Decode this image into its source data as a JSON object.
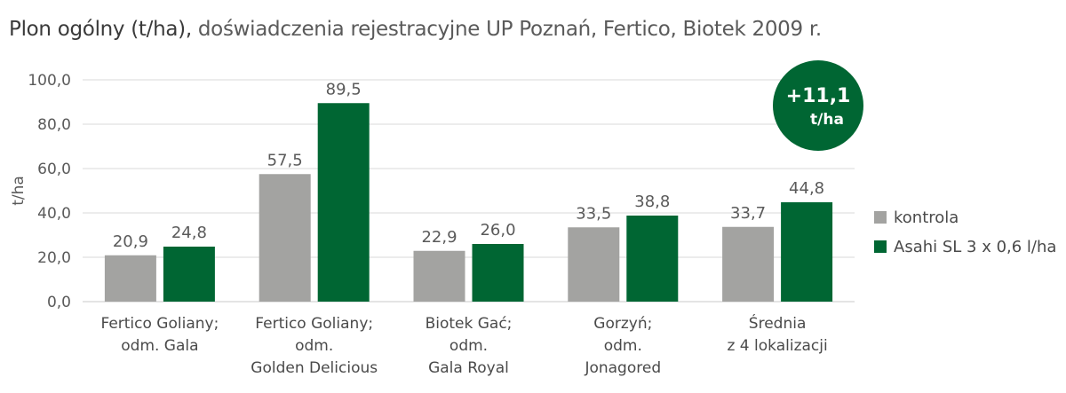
{
  "title": {
    "bold": "Plon ogólny (t/ha),",
    "rest": " doświadczenia rejestracyjne UP Poznań, Fertico, Biotek 2009 r."
  },
  "badge": {
    "value": "+11,1",
    "unit": "t/ha",
    "color": "#006633"
  },
  "chart_data": {
    "type": "bar",
    "title": "Plon ogólny (t/ha), doświadczenia rejestracyjne UP Poznań, Fertico, Biotek 2009 r.",
    "ylabel": "t/ha",
    "xlabel": "",
    "ylim": [
      0,
      100
    ],
    "yticks": [
      0,
      20,
      40,
      60,
      80,
      100
    ],
    "ytick_labels": [
      "0,0",
      "20,0",
      "40,0",
      "60,0",
      "80,0",
      "100,0"
    ],
    "grid": true,
    "legend_position": "right",
    "categories": [
      [
        "Fertico Goliany;",
        "odm. Gala"
      ],
      [
        "Fertico Goliany;",
        "odm.",
        "Golden Delicious"
      ],
      [
        "Biotek Gać;",
        "odm.",
        "Gala Royal"
      ],
      [
        "Gorzyń;",
        "odm.",
        "Jonagored"
      ],
      [
        "Średnia",
        "z 4 lokalizacji"
      ]
    ],
    "series": [
      {
        "name": "kontrola",
        "color": "#a3a3a1",
        "values": [
          20.9,
          57.5,
          22.9,
          33.5,
          33.7
        ],
        "labels": [
          "20,9",
          "57,5",
          "22,9",
          "33,5",
          "33,7"
        ]
      },
      {
        "name": "Asahi SL 3 x 0,6 l/ha",
        "color": "#006633",
        "values": [
          24.8,
          89.5,
          26.0,
          38.8,
          44.8
        ],
        "labels": [
          "24,8",
          "89,5",
          "26,0",
          "38,8",
          "44,8"
        ]
      }
    ]
  }
}
